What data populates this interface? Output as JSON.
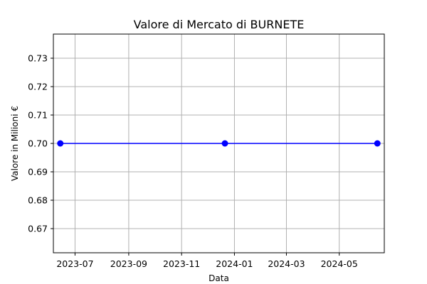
{
  "chart_data": {
    "type": "line",
    "title": "Valore di Mercato di BURNETE",
    "xlabel": "Data",
    "ylabel": "Valore in Milioni €",
    "x_ticks": [
      {
        "date": "2023-07-01",
        "label": "2023-07"
      },
      {
        "date": "2023-09-01",
        "label": "2023-09"
      },
      {
        "date": "2023-11-01",
        "label": "2023-11"
      },
      {
        "date": "2024-01-01",
        "label": "2024-01"
      },
      {
        "date": "2024-03-01",
        "label": "2024-03"
      },
      {
        "date": "2024-05-01",
        "label": "2024-05"
      }
    ],
    "y_ticks": [
      0.67,
      0.68,
      0.69,
      0.7,
      0.71,
      0.72,
      0.73
    ],
    "xlim": [
      "2023-06-06",
      "2024-06-22"
    ],
    "ylim": [
      0.6615,
      0.7385
    ],
    "grid": true,
    "series": [
      {
        "color": "#0000ff",
        "marker": "circle",
        "points": [
          {
            "x": "2023-06-14",
            "y": 0.7
          },
          {
            "x": "2023-12-21",
            "y": 0.7
          },
          {
            "x": "2024-06-14",
            "y": 0.7
          }
        ]
      }
    ]
  }
}
